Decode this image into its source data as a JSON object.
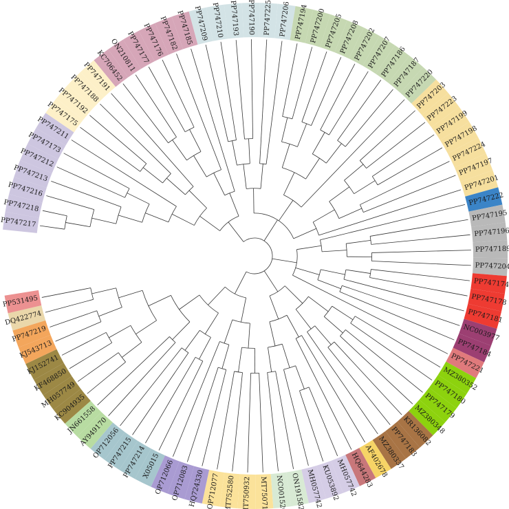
{
  "tree": {
    "title": "",
    "leaves": [
      {
        "label": "PP747217",
        "color": "#cdc6e0"
      },
      {
        "label": "PP747218",
        "color": "#cdc6e0"
      },
      {
        "label": "PP747216",
        "color": "#cdc6e0"
      },
      {
        "label": "PP747213",
        "color": "#cdc6e0"
      },
      {
        "label": "PP747212",
        "color": "#cdc6e0"
      },
      {
        "label": "PP747173",
        "color": "#cdc6e0"
      },
      {
        "label": "PP747211",
        "color": "#cdc6e0"
      },
      {
        "label": "PP747175",
        "color": "#fdf0c8"
      },
      {
        "label": "PP747192",
        "color": "#fdf0c8"
      },
      {
        "label": "PP747188",
        "color": "#fdf0c8"
      },
      {
        "label": "PP747191",
        "color": "#fdf0c8"
      },
      {
        "label": "KC706452",
        "color": "#d6a6b8"
      },
      {
        "label": "ON210811",
        "color": "#d6a6b8"
      },
      {
        "label": "PP747177",
        "color": "#d6a6b8"
      },
      {
        "label": "PP747176",
        "color": "#d6a6b8"
      },
      {
        "label": "PP747182",
        "color": "#d6a6b8"
      },
      {
        "label": "PP747185",
        "color": "#d6a6b8"
      },
      {
        "label": "PP747209",
        "color": "#d3e3e6"
      },
      {
        "label": "PP747210",
        "color": "#d3e3e6"
      },
      {
        "label": "PP747193",
        "color": "#d3e3e6"
      },
      {
        "label": "PP747190",
        "color": "#d3e3e6"
      },
      {
        "label": "PP747225",
        "color": "#d3e3e6"
      },
      {
        "label": "PP747206",
        "color": "#d3e3e6"
      },
      {
        "label": "PP747194",
        "color": "#c6d8b2"
      },
      {
        "label": "PP747200",
        "color": "#c6d8b2"
      },
      {
        "label": "PP747205",
        "color": "#c6d8b2"
      },
      {
        "label": "PP747208",
        "color": "#c6d8b2"
      },
      {
        "label": "PP747202",
        "color": "#c6d8b2"
      },
      {
        "label": "PP747207",
        "color": "#c6d8b2"
      },
      {
        "label": "PP747186",
        "color": "#c6d8b2"
      },
      {
        "label": "PP747187",
        "color": "#c6d8b2"
      },
      {
        "label": "PP747220",
        "color": "#c6d8b2"
      },
      {
        "label": "PP747203",
        "color": "#f6df9e"
      },
      {
        "label": "PP747223",
        "color": "#f6df9e"
      },
      {
        "label": "PP747199",
        "color": "#f6df9e"
      },
      {
        "label": "PP747198",
        "color": "#f6df9e"
      },
      {
        "label": "PP747224",
        "color": "#f6df9e"
      },
      {
        "label": "PP747197",
        "color": "#f6df9e"
      },
      {
        "label": "PP747201",
        "color": "#f6df9e"
      },
      {
        "label": "PP747222",
        "color": "#3b84c7"
      },
      {
        "label": "PP747195",
        "color": "#b9b9b9"
      },
      {
        "label": "PP747196",
        "color": "#b9b9b9"
      },
      {
        "label": "PP747189",
        "color": "#b9b9b9"
      },
      {
        "label": "PP747204",
        "color": "#b9b9b9"
      },
      {
        "label": "PP747174",
        "color": "#ee3b32"
      },
      {
        "label": "PP747178",
        "color": "#ee3b32"
      },
      {
        "label": "PP747181",
        "color": "#ee3b32"
      },
      {
        "label": "NC003977",
        "color": "#9c3f72"
      },
      {
        "label": "PP747184",
        "color": "#9c3f72"
      },
      {
        "label": "PP747221",
        "color": "#e07a7c"
      },
      {
        "label": "MZ380352",
        "color": "#8dd20e"
      },
      {
        "label": "PP747180",
        "color": "#8dd20e"
      },
      {
        "label": "PP747179",
        "color": "#8dd20e"
      },
      {
        "label": "MZ380348",
        "color": "#8dd20e"
      },
      {
        "label": "KR136082",
        "color": "#a87445"
      },
      {
        "label": "PP747183",
        "color": "#a87445"
      },
      {
        "label": "MZ380337",
        "color": "#a87445"
      },
      {
        "label": "AF402678",
        "color": "#f6d466"
      },
      {
        "label": "HQ644283",
        "color": "#c8777a"
      },
      {
        "label": "MH057742",
        "color": "#d5cde6"
      },
      {
        "label": "KU053892",
        "color": "#d5cde6"
      },
      {
        "label": "MH057742",
        "color": "#d5cde6"
      },
      {
        "label": "ON191582",
        "color": "#d8ead4"
      },
      {
        "label": "NC001526",
        "color": "#d8ead4"
      },
      {
        "label": "MT750711",
        "color": "#fbe29a"
      },
      {
        "label": "MT750932",
        "color": "#fbe29a"
      },
      {
        "label": "MT752580",
        "color": "#fbe29a"
      },
      {
        "label": "OP712077",
        "color": "#fbe29a"
      },
      {
        "label": "HQ724330",
        "color": "#a99bd2"
      },
      {
        "label": "OP712083",
        "color": "#a99bd2"
      },
      {
        "label": "OP712066",
        "color": "#a99bd2"
      },
      {
        "label": "X05015",
        "color": "#a6c6cd"
      },
      {
        "label": "PP747214",
        "color": "#a6c6cd"
      },
      {
        "label": "PP747215",
        "color": "#a6c6cd"
      },
      {
        "label": "OP712056",
        "color": "#a6c6cd"
      },
      {
        "label": "AY949170",
        "color": "#b8dca2"
      },
      {
        "label": "JN661558",
        "color": "#b8dca2"
      },
      {
        "label": "KC904935",
        "color": "#9c8845"
      },
      {
        "label": "MH057749",
        "color": "#9c8845"
      },
      {
        "label": "KF468850",
        "color": "#9c8845"
      },
      {
        "label": "KJ152741",
        "color": "#9c8845"
      },
      {
        "label": "KJ543713",
        "color": "#f3a65c"
      },
      {
        "label": "PP747219",
        "color": "#f3a65c"
      },
      {
        "label": "DQ422774",
        "color": "#ead7aa"
      },
      {
        "label": "PP531495",
        "color": "#ec9191"
      }
    ]
  }
}
